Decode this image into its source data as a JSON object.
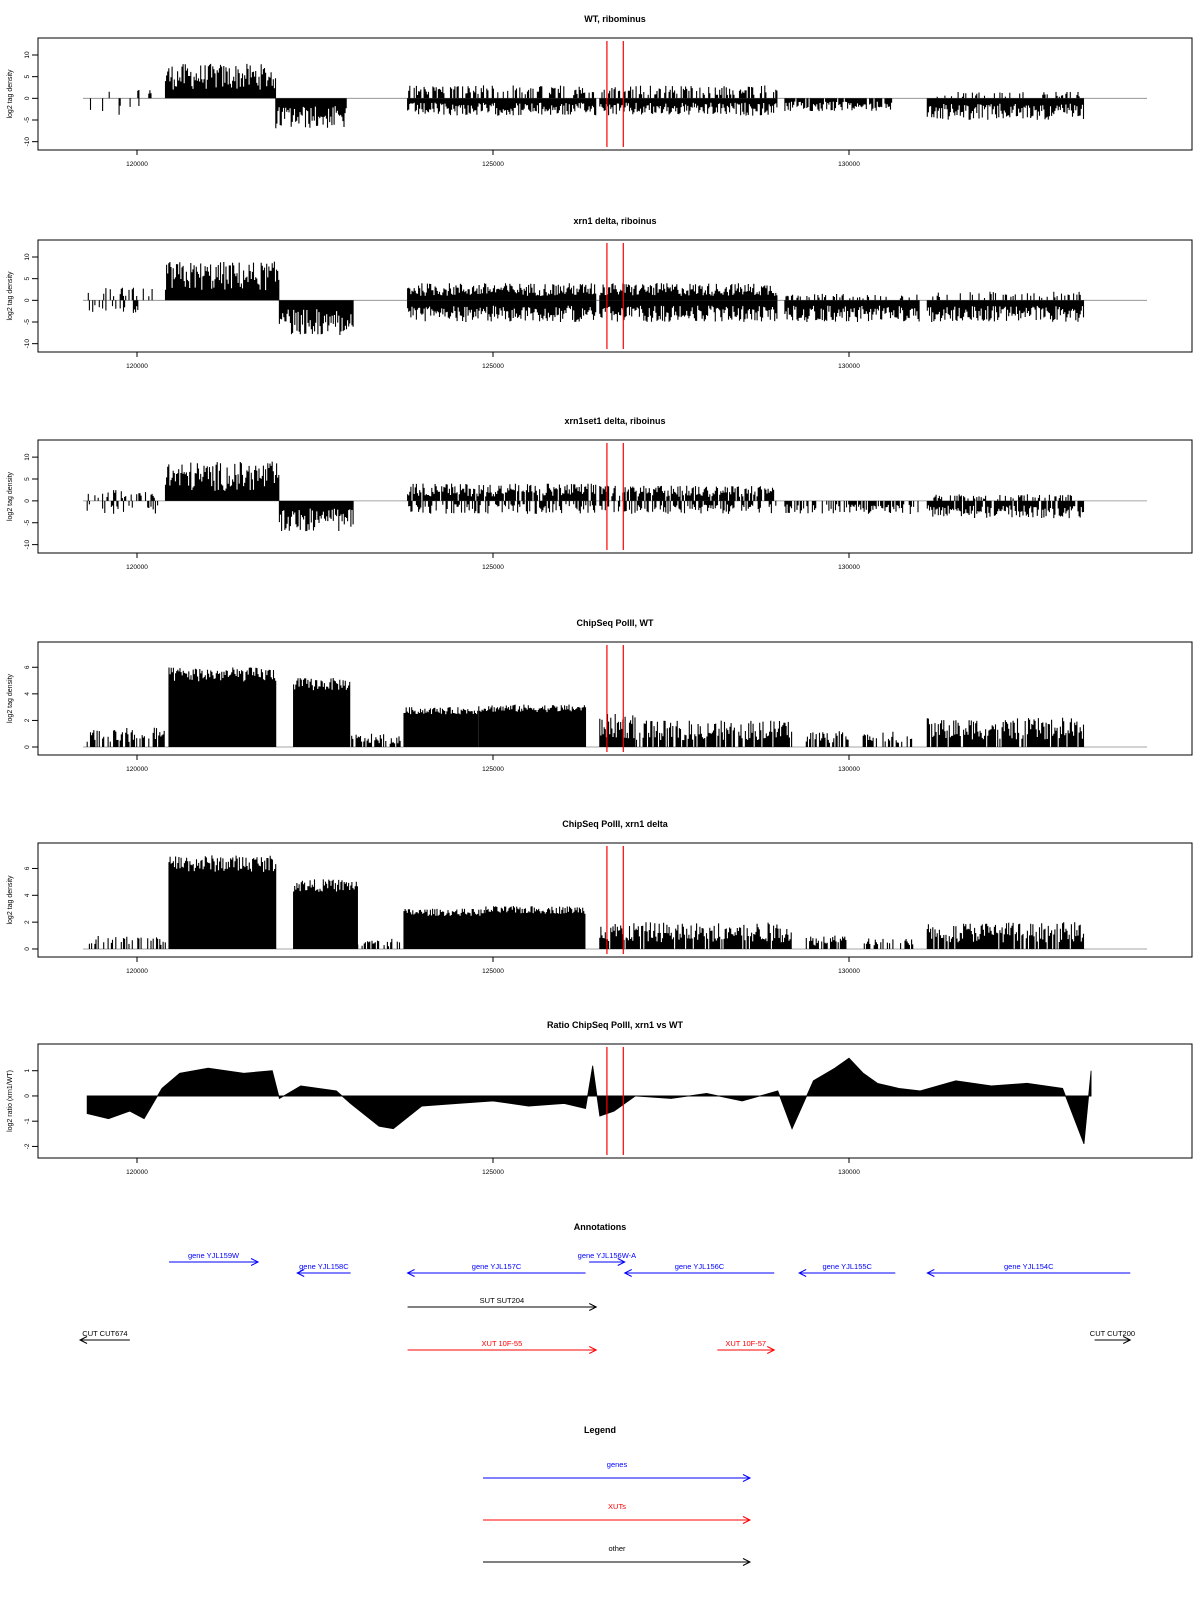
{
  "chart_data": [
    {
      "type": "bar",
      "title": "WT, ribominus",
      "ylabel": "log2 tag density",
      "ylim": [
        -11,
        13
      ],
      "yticks": [
        "-10",
        "-5",
        "0",
        "5",
        "10"
      ],
      "xlim": [
        119250,
        133500
      ],
      "xticks": [
        "120000",
        "125000",
        "130000"
      ],
      "markers": [
        126600,
        126830
      ],
      "regions": [
        {
          "x0": 119300,
          "x1": 120300,
          "sign": 1,
          "amp": 2.5,
          "density": 0.15
        },
        {
          "x0": 119300,
          "x1": 120300,
          "sign": -1,
          "amp": 4,
          "density": 0.1
        },
        {
          "x0": 120400,
          "x1": 121950,
          "sign": 1,
          "amp": 8,
          "density": 1
        },
        {
          "x0": 121950,
          "x1": 122950,
          "sign": -1,
          "amp": 7,
          "density": 1
        },
        {
          "x0": 123800,
          "x1": 126450,
          "sign": 1,
          "amp": 3,
          "density": 0.5
        },
        {
          "x0": 123800,
          "x1": 126450,
          "sign": -1,
          "amp": 4,
          "density": 1
        },
        {
          "x0": 126500,
          "x1": 129000,
          "sign": 1,
          "amp": 3,
          "density": 0.5
        },
        {
          "x0": 126500,
          "x1": 129000,
          "sign": -1,
          "amp": 4,
          "density": 1
        },
        {
          "x0": 129100,
          "x1": 130600,
          "sign": -1,
          "amp": 3,
          "density": 0.9
        },
        {
          "x0": 131100,
          "x1": 133300,
          "sign": -1,
          "amp": 5,
          "density": 1
        },
        {
          "x0": 131100,
          "x1": 133300,
          "sign": 1,
          "amp": 1.5,
          "density": 0.2
        }
      ]
    },
    {
      "type": "bar",
      "title": "xrn1 delta, riboinus",
      "ylabel": "log2 tag density",
      "ylim": [
        -11,
        13
      ],
      "yticks": [
        "-10",
        "-5",
        "0",
        "5",
        "10"
      ],
      "xlim": [
        119250,
        133500
      ],
      "xticks": [
        "120000",
        "125000",
        "130000"
      ],
      "markers": [
        126600,
        126830
      ],
      "regions": [
        {
          "x0": 119300,
          "x1": 120300,
          "sign": 1,
          "amp": 3,
          "density": 0.3
        },
        {
          "x0": 119300,
          "x1": 120300,
          "sign": -1,
          "amp": 3,
          "density": 0.3
        },
        {
          "x0": 120400,
          "x1": 122000,
          "sign": 1,
          "amp": 9,
          "density": 1
        },
        {
          "x0": 122000,
          "x1": 123050,
          "sign": -1,
          "amp": 8,
          "density": 1
        },
        {
          "x0": 123800,
          "x1": 126450,
          "sign": 1,
          "amp": 4,
          "density": 1
        },
        {
          "x0": 123800,
          "x1": 126450,
          "sign": -1,
          "amp": 5,
          "density": 1
        },
        {
          "x0": 126500,
          "x1": 129000,
          "sign": 1,
          "amp": 4,
          "density": 1
        },
        {
          "x0": 126500,
          "x1": 129000,
          "sign": -1,
          "amp": 5,
          "density": 1
        },
        {
          "x0": 129100,
          "x1": 131000,
          "sign": -1,
          "amp": 5,
          "density": 1
        },
        {
          "x0": 129100,
          "x1": 131000,
          "sign": 1,
          "amp": 1.5,
          "density": 0.3
        },
        {
          "x0": 131100,
          "x1": 133300,
          "sign": -1,
          "amp": 5,
          "density": 1
        },
        {
          "x0": 131100,
          "x1": 133300,
          "sign": 1,
          "amp": 2,
          "density": 0.3
        }
      ]
    },
    {
      "type": "bar",
      "title": "xrn1set1 delta, riboinus",
      "ylabel": "log2 tag density",
      "ylim": [
        -11,
        13
      ],
      "yticks": [
        "-10",
        "-5",
        "0",
        "5",
        "10"
      ],
      "xlim": [
        119250,
        133500
      ],
      "xticks": [
        "120000",
        "125000",
        "130000"
      ],
      "markers": [
        126600,
        126830
      ],
      "regions": [
        {
          "x0": 119300,
          "x1": 120300,
          "sign": 1,
          "amp": 2.5,
          "density": 0.3
        },
        {
          "x0": 119300,
          "x1": 120300,
          "sign": -1,
          "amp": 3,
          "density": 0.3
        },
        {
          "x0": 120400,
          "x1": 122000,
          "sign": 1,
          "amp": 9,
          "density": 1
        },
        {
          "x0": 122000,
          "x1": 123050,
          "sign": -1,
          "amp": 7,
          "density": 1
        },
        {
          "x0": 123800,
          "x1": 126450,
          "sign": 1,
          "amp": 4,
          "density": 0.9
        },
        {
          "x0": 123800,
          "x1": 126450,
          "sign": -1,
          "amp": 3,
          "density": 0.5
        },
        {
          "x0": 126500,
          "x1": 129000,
          "sign": 1,
          "amp": 3.5,
          "density": 0.8
        },
        {
          "x0": 126500,
          "x1": 129000,
          "sign": -1,
          "amp": 3,
          "density": 0.5
        },
        {
          "x0": 129100,
          "x1": 131000,
          "sign": -1,
          "amp": 3,
          "density": 0.6
        },
        {
          "x0": 131100,
          "x1": 133300,
          "sign": -1,
          "amp": 4,
          "density": 0.9
        },
        {
          "x0": 131100,
          "x1": 133300,
          "sign": 1,
          "amp": 1.5,
          "density": 0.3
        }
      ]
    },
    {
      "type": "bar",
      "title": "ChipSeq PolII, WT",
      "ylabel": "log2 tag density",
      "ylim": [
        -0.3,
        7.6
      ],
      "yticks": [
        "0",
        "2",
        "4",
        "6"
      ],
      "xlim": [
        119250,
        133500
      ],
      "xticks": [
        "120000",
        "125000",
        "130000"
      ],
      "markers": [
        126600,
        126830
      ],
      "regions": [
        {
          "x0": 119300,
          "x1": 120400,
          "sign": 1,
          "amp": 1.5,
          "density": 0.6
        },
        {
          "x0": 120450,
          "x1": 121950,
          "sign": 1,
          "amp": 6,
          "density": 1,
          "solid": true
        },
        {
          "x0": 122200,
          "x1": 123000,
          "sign": 1,
          "amp": 5.2,
          "density": 1,
          "solid": true
        },
        {
          "x0": 123000,
          "x1": 123700,
          "sign": 1,
          "amp": 1,
          "density": 0.8
        },
        {
          "x0": 123750,
          "x1": 124800,
          "sign": 1,
          "amp": 3,
          "density": 1,
          "solid": true
        },
        {
          "x0": 124800,
          "x1": 126300,
          "sign": 1,
          "amp": 3.2,
          "density": 1,
          "solid": true
        },
        {
          "x0": 126500,
          "x1": 127000,
          "sign": 1,
          "amp": 2.5,
          "density": 1
        },
        {
          "x0": 127000,
          "x1": 129200,
          "sign": 1,
          "amp": 2,
          "density": 0.8
        },
        {
          "x0": 129400,
          "x1": 130000,
          "sign": 1,
          "amp": 1.2,
          "density": 0.6
        },
        {
          "x0": 130200,
          "x1": 130900,
          "sign": 1,
          "amp": 1.2,
          "density": 0.5
        },
        {
          "x0": 131100,
          "x1": 133300,
          "sign": 1,
          "amp": 2.2,
          "density": 0.9
        }
      ]
    },
    {
      "type": "bar",
      "title": "ChipSeq PolII, xrn1 delta",
      "ylabel": "log2 tag density",
      "ylim": [
        -0.3,
        7.6
      ],
      "yticks": [
        "0",
        "2",
        "4",
        "6"
      ],
      "xlim": [
        119250,
        133500
      ],
      "xticks": [
        "120000",
        "125000",
        "130000"
      ],
      "markers": [
        126600,
        126830
      ],
      "regions": [
        {
          "x0": 119300,
          "x1": 120400,
          "sign": 1,
          "amp": 1,
          "density": 0.4
        },
        {
          "x0": 120450,
          "x1": 121950,
          "sign": 1,
          "amp": 7,
          "density": 1,
          "solid": true
        },
        {
          "x0": 122200,
          "x1": 123100,
          "sign": 1,
          "amp": 5.2,
          "density": 1,
          "solid": true
        },
        {
          "x0": 123100,
          "x1": 123700,
          "sign": 1,
          "amp": 0.8,
          "density": 0.6
        },
        {
          "x0": 123750,
          "x1": 124900,
          "sign": 1,
          "amp": 3,
          "density": 1,
          "solid": true
        },
        {
          "x0": 124900,
          "x1": 126300,
          "sign": 1,
          "amp": 3.2,
          "density": 1,
          "solid": true
        },
        {
          "x0": 126500,
          "x1": 129200,
          "sign": 1,
          "amp": 2,
          "density": 0.9
        },
        {
          "x0": 129400,
          "x1": 130000,
          "sign": 1,
          "amp": 1,
          "density": 0.6
        },
        {
          "x0": 130200,
          "x1": 130900,
          "sign": 1,
          "amp": 1,
          "density": 0.5
        },
        {
          "x0": 131100,
          "x1": 133300,
          "sign": 1,
          "amp": 2,
          "density": 0.9
        }
      ]
    },
    {
      "type": "area",
      "title": "Ratio ChipSeq PolII, xrn1 vs WT",
      "ylabel": "log2 ratio (xrn1/WT)",
      "ylim": [
        -2.3,
        1.9
      ],
      "yticks": [
        "-2",
        "-1",
        "0",
        "1"
      ],
      "xlim": [
        119250,
        133500
      ],
      "xticks": [
        "120000",
        "125000",
        "130000"
      ],
      "markers": [
        126600,
        126830
      ],
      "x": [
        119300,
        119600,
        119900,
        120100,
        120350,
        120600,
        121000,
        121500,
        121900,
        122000,
        122300,
        122800,
        123000,
        123400,
        123600,
        124000,
        124500,
        125000,
        125500,
        126000,
        126300,
        126400,
        126500,
        126700,
        127000,
        127500,
        128000,
        128500,
        129000,
        129200,
        129500,
        129800,
        130000,
        130200,
        130400,
        130700,
        131000,
        131500,
        132000,
        132500,
        133000,
        133300,
        133400
      ],
      "values": [
        -0.7,
        -0.9,
        -0.6,
        -0.9,
        0.3,
        0.9,
        1.1,
        0.9,
        1.0,
        -0.1,
        0.4,
        0.2,
        -0.3,
        -1.2,
        -1.3,
        -0.4,
        -0.3,
        -0.2,
        -0.4,
        -0.3,
        -0.5,
        1.2,
        -0.8,
        -0.6,
        0.0,
        -0.1,
        0.1,
        -0.2,
        0.2,
        -1.3,
        0.6,
        1.1,
        1.5,
        0.9,
        0.5,
        0.3,
        0.2,
        0.6,
        0.4,
        0.5,
        0.3,
        -1.9,
        1.0
      ]
    }
  ],
  "annotations": {
    "title": "Annotations",
    "items": [
      {
        "label": "gene YJL159W",
        "color": "#0000ff",
        "x0": 120450,
        "x1": 121700,
        "dir": "right",
        "row": 0
      },
      {
        "label": "gene YJL158C",
        "color": "#0000ff",
        "x0": 122250,
        "x1": 123000,
        "dir": "left",
        "row": 1
      },
      {
        "label": "gene YJL157C",
        "color": "#0000ff",
        "x0": 123800,
        "x1": 126300,
        "dir": "left",
        "row": 1
      },
      {
        "label": "gene YJL156W-A",
        "color": "#0000ff",
        "x0": 126350,
        "x1": 126850,
        "dir": "right",
        "row": 0
      },
      {
        "label": "gene YJL156C",
        "color": "#0000ff",
        "x0": 126850,
        "x1": 128950,
        "dir": "left",
        "row": 1
      },
      {
        "label": "gene YJL155C",
        "color": "#0000ff",
        "x0": 129300,
        "x1": 130650,
        "dir": "left",
        "row": 1
      },
      {
        "label": "gene YJL154C",
        "color": "#0000ff",
        "x0": 131100,
        "x1": 133950,
        "dir": "left",
        "row": 1
      },
      {
        "label": "SUT SUT204",
        "color": "#000000",
        "x0": 123800,
        "x1": 126450,
        "dir": "right",
        "row": 2
      },
      {
        "label": "CUT CUT674",
        "color": "#000000",
        "x0": 119200,
        "x1": 119900,
        "dir": "left",
        "row": 3
      },
      {
        "label": "CUT CUT200",
        "color": "#000000",
        "x0": 133450,
        "x1": 133950,
        "dir": "right",
        "row": 3
      },
      {
        "label": "XUT 10F-55",
        "color": "#ff0000",
        "x0": 123800,
        "x1": 126450,
        "dir": "right",
        "row": 4
      },
      {
        "label": "XUT 10F-57",
        "color": "#ff0000",
        "x0": 128150,
        "x1": 128950,
        "dir": "right",
        "row": 4
      }
    ]
  },
  "legend": {
    "title": "Legend",
    "items": [
      {
        "label": "genes",
        "color": "#0000ff"
      },
      {
        "label": "XUTs",
        "color": "#ff0000"
      },
      {
        "label": "other",
        "color": "#000000"
      }
    ]
  },
  "colors": {
    "marker": "#ff0000",
    "bars": "#000000",
    "gene": "#0000ff",
    "xut": "#ff0000",
    "other": "#000000"
  }
}
